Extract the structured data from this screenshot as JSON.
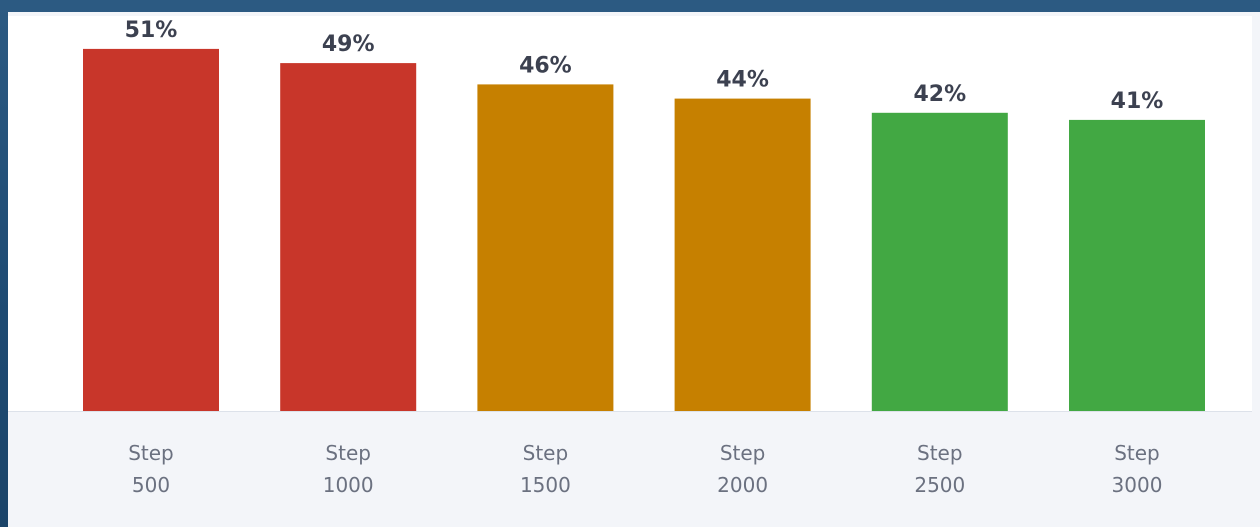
{
  "chart_data": {
    "type": "bar",
    "categories": [
      [
        "Step",
        "500"
      ],
      [
        "Step",
        "1000"
      ],
      [
        "Step",
        "1500"
      ],
      [
        "Step",
        "2000"
      ],
      [
        "Step",
        "2500"
      ],
      [
        "Step",
        "3000"
      ]
    ],
    "values": [
      51,
      49,
      46,
      44,
      42,
      41
    ],
    "value_labels": [
      "51%",
      "49%",
      "46%",
      "44%",
      "42%",
      "41%"
    ],
    "bar_colors": [
      "#c8362a",
      "#c8362a",
      "#c68000",
      "#c68000",
      "#42a843",
      "#42a843"
    ],
    "ylim": [
      0,
      56
    ],
    "grid": false,
    "legend": "none"
  }
}
